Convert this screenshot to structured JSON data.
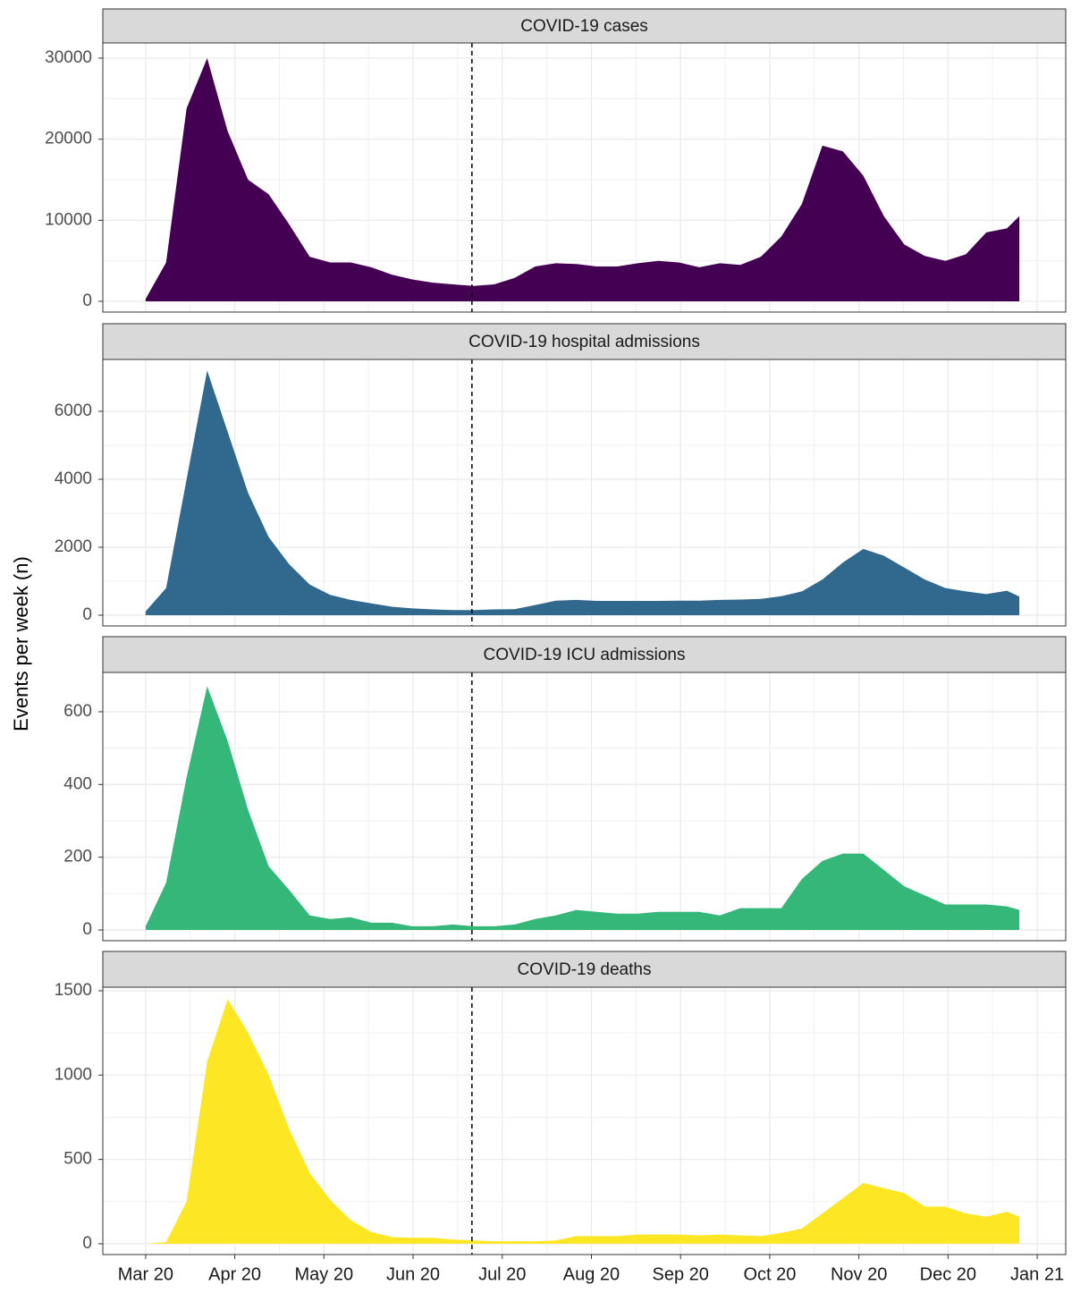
{
  "y_label": "Events per week (n)",
  "x_axis": {
    "xlim": [
      -0.48,
      10.32
    ],
    "xticks": [
      {
        "value": 0,
        "label": "Mar 20"
      },
      {
        "value": 1,
        "label": "Apr 20"
      },
      {
        "value": 2,
        "label": "May 20"
      },
      {
        "value": 3,
        "label": "Jun 20"
      },
      {
        "value": 4,
        "label": "Jul 20"
      },
      {
        "value": 5,
        "label": "Aug 20"
      },
      {
        "value": 6,
        "label": "Sep 20"
      },
      {
        "value": 7,
        "label": "Oct 20"
      },
      {
        "value": 8,
        "label": "Nov 20"
      },
      {
        "value": 9,
        "label": "Dec 20"
      },
      {
        "value": 10,
        "label": "Jan 21"
      }
    ],
    "vline": 3.66
  },
  "chart_data": [
    {
      "type": "area",
      "title": "COVID-19 cases",
      "color": "#440154",
      "grid": true,
      "x": [
        0,
        0.23,
        0.46,
        0.69,
        0.92,
        1.15,
        1.38,
        1.61,
        1.84,
        2.07,
        2.3,
        2.53,
        2.76,
        2.99,
        3.22,
        3.45,
        3.68,
        3.91,
        4.14,
        4.37,
        4.6,
        4.83,
        5.06,
        5.29,
        5.52,
        5.75,
        5.98,
        6.21,
        6.44,
        6.67,
        6.9,
        7.13,
        7.36,
        7.59,
        7.82,
        8.05,
        8.28,
        8.51,
        8.74,
        8.97,
        9.2,
        9.43,
        9.66,
        9.8
      ],
      "values": [
        300,
        4800,
        23800,
        30000,
        21000,
        15000,
        13200,
        9500,
        5500,
        4800,
        4800,
        4200,
        3300,
        2700,
        2300,
        2100,
        1900,
        2100,
        2900,
        4300,
        4700,
        4600,
        4300,
        4300,
        4700,
        5000,
        4800,
        4200,
        4700,
        4500,
        5500,
        8000,
        12000,
        19200,
        18500,
        15500,
        10500,
        7000,
        5600,
        5000,
        5800,
        8500,
        9000,
        10500
      ],
      "ylim": [
        -1324,
        31875
      ],
      "yticks": [
        0,
        10000,
        20000,
        30000
      ]
    },
    {
      "type": "area",
      "title": "COVID-19 hospital admissions",
      "color": "#31688e",
      "grid": true,
      "x": [
        0,
        0.23,
        0.46,
        0.69,
        0.92,
        1.15,
        1.38,
        1.61,
        1.84,
        2.07,
        2.3,
        2.53,
        2.76,
        2.99,
        3.22,
        3.45,
        3.68,
        3.91,
        4.14,
        4.37,
        4.6,
        4.83,
        5.06,
        5.29,
        5.52,
        5.75,
        5.98,
        6.21,
        6.44,
        6.67,
        6.9,
        7.13,
        7.36,
        7.59,
        7.82,
        8.05,
        8.28,
        8.51,
        8.74,
        8.97,
        9.2,
        9.43,
        9.66,
        9.8
      ],
      "values": [
        110,
        800,
        4000,
        7200,
        5400,
        3600,
        2300,
        1500,
        900,
        600,
        450,
        350,
        250,
        200,
        170,
        150,
        150,
        170,
        180,
        300,
        430,
        450,
        420,
        420,
        420,
        420,
        430,
        430,
        450,
        460,
        480,
        560,
        700,
        1050,
        1550,
        1950,
        1750,
        1400,
        1050,
        800,
        700,
        620,
        720,
        550
      ],
      "ylim": [
        -316,
        7526
      ],
      "yticks": [
        0,
        2000,
        4000,
        6000
      ]
    },
    {
      "type": "area",
      "title": "COVID-19 ICU admissions",
      "color": "#35b779",
      "grid": true,
      "x": [
        0,
        0.23,
        0.46,
        0.69,
        0.92,
        1.15,
        1.38,
        1.61,
        1.84,
        2.07,
        2.3,
        2.53,
        2.76,
        2.99,
        3.22,
        3.45,
        3.68,
        3.91,
        4.14,
        4.37,
        4.6,
        4.83,
        5.06,
        5.29,
        5.52,
        5.75,
        5.98,
        6.21,
        6.44,
        6.67,
        6.9,
        7.13,
        7.36,
        7.59,
        7.82,
        8.05,
        8.28,
        8.51,
        8.74,
        8.97,
        9.2,
        9.43,
        9.66,
        9.8
      ],
      "values": [
        10,
        130,
        420,
        670,
        520,
        330,
        175,
        110,
        40,
        30,
        35,
        20,
        20,
        10,
        10,
        15,
        10,
        10,
        15,
        30,
        40,
        55,
        50,
        45,
        45,
        50,
        50,
        50,
        40,
        60,
        60,
        60,
        140,
        190,
        210,
        210,
        165,
        120,
        95,
        70,
        70,
        70,
        65,
        55
      ],
      "ylim": [
        -29.5,
        708
      ],
      "yticks": [
        0,
        200,
        400,
        600
      ]
    },
    {
      "type": "area",
      "title": "COVID-19 deaths",
      "color": "#fde725",
      "grid": true,
      "x": [
        0,
        0.23,
        0.46,
        0.69,
        0.92,
        1.15,
        1.38,
        1.61,
        1.84,
        2.07,
        2.3,
        2.53,
        2.76,
        2.99,
        3.22,
        3.45,
        3.68,
        3.91,
        4.14,
        4.37,
        4.6,
        4.83,
        5.06,
        5.29,
        5.52,
        5.75,
        5.98,
        6.21,
        6.44,
        6.67,
        6.9,
        7.13,
        7.36,
        7.59,
        7.82,
        8.05,
        8.28,
        8.51,
        8.74,
        8.97,
        9.2,
        9.43,
        9.66,
        9.8
      ],
      "values": [
        0,
        10,
        250,
        1080,
        1450,
        1250,
        1000,
        680,
        420,
        260,
        140,
        70,
        40,
        35,
        35,
        25,
        20,
        15,
        15,
        15,
        20,
        45,
        45,
        45,
        55,
        55,
        55,
        50,
        55,
        50,
        45,
        65,
        90,
        180,
        270,
        360,
        330,
        300,
        220,
        220,
        180,
        160,
        190,
        160
      ],
      "ylim": [
        -64,
        1521
      ],
      "yticks": [
        0,
        500,
        1000,
        1500
      ]
    }
  ]
}
